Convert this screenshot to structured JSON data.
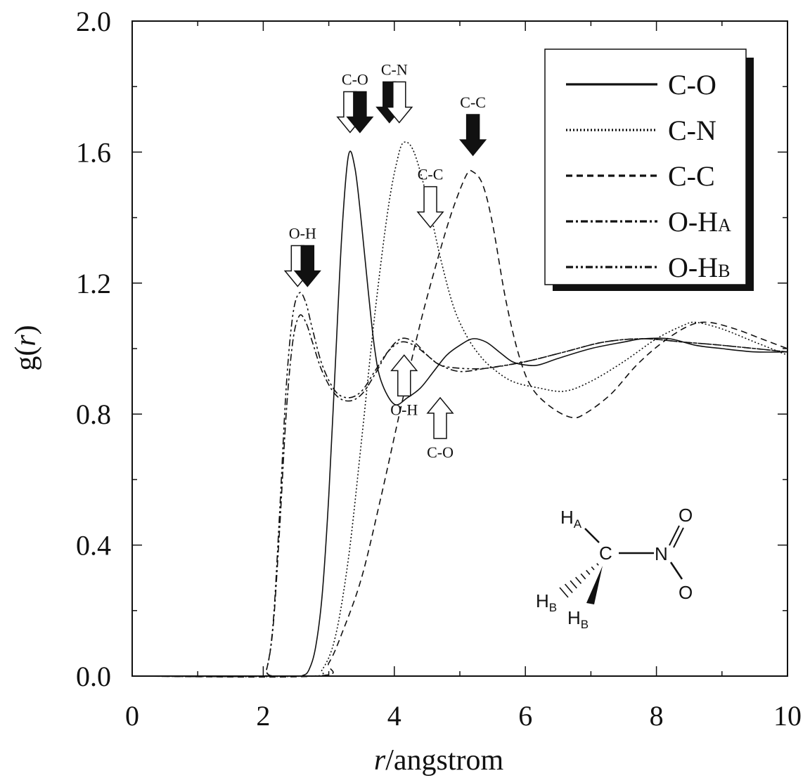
{
  "chart_data": {
    "type": "line",
    "xlabel": "/angstrom",
    "xlabel_var": "r",
    "ylabel": "g()",
    "ylabel_var": "r",
    "xlim": [
      0,
      10
    ],
    "ylim": [
      0,
      2.0
    ],
    "x_ticks": [
      "0",
      "2",
      "4",
      "6",
      "8",
      "10"
    ],
    "y_ticks": [
      "0.0",
      "0.4",
      "0.8",
      "1.2",
      "1.6",
      "2.0"
    ],
    "legend_position": "top-right",
    "series": [
      {
        "name": "C-O",
        "style": "solid",
        "width": 1.6,
        "points": [
          [
            0,
            0
          ],
          [
            2.4,
            0
          ],
          [
            2.6,
            0.002
          ],
          [
            2.7,
            0.02
          ],
          [
            2.8,
            0.09
          ],
          [
            2.9,
            0.25
          ],
          [
            3.0,
            0.55
          ],
          [
            3.1,
            0.95
          ],
          [
            3.2,
            1.35
          ],
          [
            3.3,
            1.59
          ],
          [
            3.4,
            1.55
          ],
          [
            3.5,
            1.38
          ],
          [
            3.6,
            1.18
          ],
          [
            3.7,
            1.0
          ],
          [
            3.8,
            0.9
          ],
          [
            4.0,
            0.83
          ],
          [
            4.2,
            0.85
          ],
          [
            4.4,
            0.88
          ],
          [
            4.6,
            0.93
          ],
          [
            4.8,
            0.98
          ],
          [
            5.0,
            1.01
          ],
          [
            5.2,
            1.03
          ],
          [
            5.4,
            1.02
          ],
          [
            5.6,
            0.99
          ],
          [
            5.8,
            0.96
          ],
          [
            6.0,
            0.95
          ],
          [
            6.2,
            0.95
          ],
          [
            6.5,
            0.97
          ],
          [
            7.0,
            1.0
          ],
          [
            7.5,
            1.02
          ],
          [
            7.8,
            1.03
          ],
          [
            8.2,
            1.03
          ],
          [
            8.6,
            1.01
          ],
          [
            9.0,
            1.0
          ],
          [
            9.5,
            0.99
          ],
          [
            10,
            0.99
          ]
        ]
      },
      {
        "name": "C-N",
        "style": "dotted",
        "width": 1.6,
        "points": [
          [
            0,
            0
          ],
          [
            2.7,
            0
          ],
          [
            2.9,
            0.02
          ],
          [
            3.1,
            0.12
          ],
          [
            3.3,
            0.36
          ],
          [
            3.5,
            0.72
          ],
          [
            3.7,
            1.1
          ],
          [
            3.9,
            1.42
          ],
          [
            4.05,
            1.58
          ],
          [
            4.15,
            1.63
          ],
          [
            4.3,
            1.6
          ],
          [
            4.5,
            1.46
          ],
          [
            4.7,
            1.28
          ],
          [
            4.9,
            1.13
          ],
          [
            5.1,
            1.04
          ],
          [
            5.3,
            0.98
          ],
          [
            5.5,
            0.94
          ],
          [
            5.8,
            0.9
          ],
          [
            6.2,
            0.88
          ],
          [
            6.6,
            0.87
          ],
          [
            7.0,
            0.9
          ],
          [
            7.5,
            0.96
          ],
          [
            8.0,
            1.03
          ],
          [
            8.4,
            1.07
          ],
          [
            8.6,
            1.08
          ],
          [
            9.0,
            1.06
          ],
          [
            9.5,
            1.02
          ],
          [
            10,
            0.98
          ]
        ]
      },
      {
        "name": "C-C",
        "style": "dashed",
        "width": 1.6,
        "points": [
          [
            0,
            0
          ],
          [
            2.8,
            0
          ],
          [
            3.0,
            0.04
          ],
          [
            3.2,
            0.13
          ],
          [
            3.5,
            0.3
          ],
          [
            3.8,
            0.55
          ],
          [
            4.1,
            0.82
          ],
          [
            4.4,
            1.08
          ],
          [
            4.7,
            1.3
          ],
          [
            4.9,
            1.43
          ],
          [
            5.1,
            1.53
          ],
          [
            5.2,
            1.54
          ],
          [
            5.35,
            1.5
          ],
          [
            5.5,
            1.38
          ],
          [
            5.7,
            1.15
          ],
          [
            5.9,
            0.98
          ],
          [
            6.1,
            0.88
          ],
          [
            6.4,
            0.82
          ],
          [
            6.7,
            0.79
          ],
          [
            6.9,
            0.8
          ],
          [
            7.3,
            0.86
          ],
          [
            7.7,
            0.95
          ],
          [
            8.1,
            1.02
          ],
          [
            8.5,
            1.07
          ],
          [
            8.8,
            1.08
          ],
          [
            9.2,
            1.06
          ],
          [
            9.6,
            1.03
          ],
          [
            10,
            1.0
          ]
        ]
      },
      {
        "name": "O-HA",
        "style": "dashdot",
        "width": 1.6,
        "points": [
          [
            0,
            0
          ],
          [
            1.95,
            0
          ],
          [
            2.05,
            0.02
          ],
          [
            2.15,
            0.15
          ],
          [
            2.25,
            0.45
          ],
          [
            2.35,
            0.8
          ],
          [
            2.45,
            1.02
          ],
          [
            2.55,
            1.1
          ],
          [
            2.65,
            1.08
          ],
          [
            2.75,
            1.02
          ],
          [
            2.9,
            0.93
          ],
          [
            3.1,
            0.86
          ],
          [
            3.3,
            0.84
          ],
          [
            3.5,
            0.86
          ],
          [
            3.7,
            0.92
          ],
          [
            3.9,
            0.99
          ],
          [
            4.1,
            1.03
          ],
          [
            4.3,
            1.02
          ],
          [
            4.5,
            0.98
          ],
          [
            4.7,
            0.95
          ],
          [
            5.0,
            0.93
          ],
          [
            5.4,
            0.94
          ],
          [
            6.0,
            0.96
          ],
          [
            6.6,
            0.99
          ],
          [
            7.2,
            1.02
          ],
          [
            7.8,
            1.03
          ],
          [
            8.4,
            1.02
          ],
          [
            9.0,
            1.01
          ],
          [
            10,
            0.99
          ]
        ]
      },
      {
        "name": "O-HB",
        "style": "dashdotdot",
        "width": 1.6,
        "points": [
          [
            0,
            0
          ],
          [
            1.95,
            0
          ],
          [
            2.05,
            0.02
          ],
          [
            2.15,
            0.16
          ],
          [
            2.25,
            0.5
          ],
          [
            2.35,
            0.88
          ],
          [
            2.45,
            1.1
          ],
          [
            2.55,
            1.17
          ],
          [
            2.65,
            1.14
          ],
          [
            2.75,
            1.06
          ],
          [
            2.9,
            0.95
          ],
          [
            3.1,
            0.87
          ],
          [
            3.3,
            0.85
          ],
          [
            3.5,
            0.87
          ],
          [
            3.7,
            0.93
          ],
          [
            3.9,
            0.99
          ],
          [
            4.1,
            1.02
          ],
          [
            4.3,
            1.01
          ],
          [
            4.5,
            0.98
          ],
          [
            4.7,
            0.95
          ],
          [
            5.0,
            0.94
          ],
          [
            5.4,
            0.94
          ],
          [
            6.0,
            0.96
          ],
          [
            6.6,
            0.99
          ],
          [
            7.2,
            1.02
          ],
          [
            7.8,
            1.03
          ],
          [
            8.4,
            1.02
          ],
          [
            9.0,
            1.01
          ],
          [
            10,
            0.99
          ]
        ]
      }
    ],
    "legend_entries": [
      {
        "main": "C-O",
        "sub": ""
      },
      {
        "main": "C-N",
        "sub": ""
      },
      {
        "main": "C-C",
        "sub": ""
      },
      {
        "main": "O-H",
        "sub": "A"
      },
      {
        "main": "O-H",
        "sub": "B"
      }
    ],
    "annotations": [
      {
        "label": "O-H",
        "x": 2.6,
        "y_tip": 1.19,
        "down": true,
        "fills": [
          "white",
          "black"
        ]
      },
      {
        "label": "C-O",
        "x": 3.4,
        "y_tip": 1.66,
        "down": true,
        "fills": [
          "white",
          "black"
        ]
      },
      {
        "label": "C-N",
        "x": 4.0,
        "y_tip": 1.69,
        "down": true,
        "fills": [
          "black",
          "white"
        ]
      },
      {
        "label": "C-C",
        "x": 5.2,
        "y_tip": 1.59,
        "down": true,
        "fills": [
          "black"
        ]
      },
      {
        "label": "C-C",
        "x": 4.55,
        "y_tip": 1.37,
        "down": true,
        "fills": [
          "white"
        ]
      },
      {
        "label": "O-H",
        "x": 4.15,
        "y_tip": 0.98,
        "down": false,
        "fills": [
          "white"
        ]
      },
      {
        "label": "C-O",
        "x": 4.7,
        "y_tip": 0.85,
        "down": false,
        "fills": [
          "white"
        ]
      }
    ],
    "molecule_labels": {
      "h": "H",
      "a": "A",
      "b": "B",
      "c": "C",
      "n": "N",
      "o": "O"
    }
  }
}
